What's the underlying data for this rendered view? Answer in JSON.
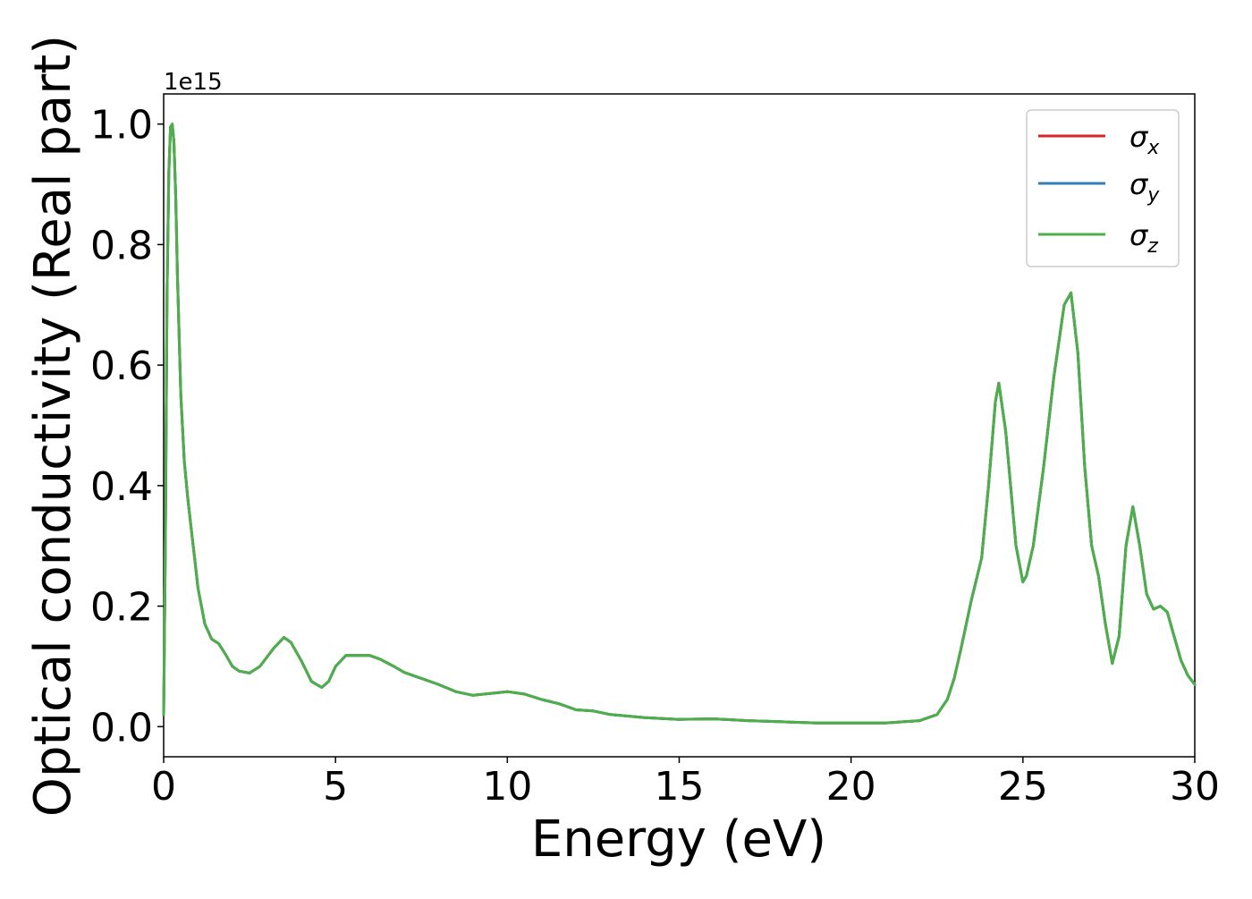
{
  "chart_data": {
    "type": "line",
    "title": "",
    "xlabel": "Energy (eV)",
    "ylabel": "Optical conductivity (Real part)",
    "y_offset_label": "1e15",
    "xlim": [
      0,
      30
    ],
    "ylim": [
      -0.05,
      1.05
    ],
    "x_ticks": [
      0,
      5,
      10,
      15,
      20,
      25,
      30
    ],
    "x_tick_labels": [
      "0",
      "5",
      "10",
      "15",
      "20",
      "25",
      "30"
    ],
    "y_ticks": [
      0.0,
      0.2,
      0.4,
      0.6,
      0.8,
      1.0
    ],
    "y_tick_labels": [
      "0.0",
      "0.2",
      "0.4",
      "0.6",
      "0.8",
      "1.0"
    ],
    "grid": false,
    "legend_position": "top-right",
    "x": [
      0,
      0.05,
      0.1,
      0.15,
      0.2,
      0.25,
      0.3,
      0.35,
      0.4,
      0.5,
      0.6,
      0.7,
      0.8,
      0.9,
      1.0,
      1.2,
      1.4,
      1.6,
      1.8,
      2.0,
      2.2,
      2.5,
      2.8,
      3.0,
      3.2,
      3.5,
      3.7,
      4.0,
      4.3,
      4.6,
      4.8,
      5.0,
      5.3,
      5.5,
      5.8,
      6.0,
      6.3,
      6.7,
      7.0,
      7.5,
      8.0,
      8.5,
      9.0,
      9.5,
      10.0,
      10.5,
      11.0,
      11.5,
      12.0,
      12.5,
      13.0,
      14.0,
      15.0,
      16.0,
      17.0,
      18.0,
      19.0,
      20.0,
      21.0,
      22.0,
      22.5,
      22.8,
      23.0,
      23.2,
      23.5,
      23.8,
      24.0,
      24.2,
      24.3,
      24.5,
      24.8,
      25.0,
      25.1,
      25.3,
      25.6,
      25.9,
      26.2,
      26.4,
      26.6,
      26.8,
      27.0,
      27.2,
      27.4,
      27.6,
      27.8,
      28.0,
      28.2,
      28.4,
      28.6,
      28.8,
      29.0,
      29.2,
      29.4,
      29.6,
      29.8,
      30.0
    ],
    "series": [
      {
        "name": "σx",
        "color": "#d62728",
        "values": [
          0.02,
          0.3,
          0.72,
          0.92,
          0.995,
          1.0,
          0.97,
          0.88,
          0.75,
          0.55,
          0.44,
          0.38,
          0.33,
          0.28,
          0.23,
          0.17,
          0.145,
          0.138,
          0.12,
          0.1,
          0.092,
          0.089,
          0.1,
          0.115,
          0.13,
          0.148,
          0.14,
          0.11,
          0.075,
          0.065,
          0.075,
          0.1,
          0.118,
          0.118,
          0.118,
          0.118,
          0.112,
          0.1,
          0.09,
          0.08,
          0.07,
          0.058,
          0.052,
          0.055,
          0.058,
          0.054,
          0.045,
          0.038,
          0.028,
          0.026,
          0.02,
          0.015,
          0.012,
          0.013,
          0.01,
          0.008,
          0.006,
          0.006,
          0.006,
          0.01,
          0.02,
          0.045,
          0.08,
          0.13,
          0.21,
          0.28,
          0.4,
          0.54,
          0.57,
          0.49,
          0.3,
          0.24,
          0.25,
          0.3,
          0.43,
          0.58,
          0.7,
          0.72,
          0.62,
          0.43,
          0.3,
          0.25,
          0.17,
          0.105,
          0.15,
          0.3,
          0.365,
          0.3,
          0.22,
          0.195,
          0.2,
          0.19,
          0.15,
          0.11,
          0.085,
          0.07
        ]
      },
      {
        "name": "σy",
        "color": "#377eb8",
        "values": [
          0.02,
          0.3,
          0.72,
          0.92,
          0.995,
          1.0,
          0.97,
          0.88,
          0.75,
          0.55,
          0.44,
          0.38,
          0.33,
          0.28,
          0.23,
          0.17,
          0.145,
          0.138,
          0.12,
          0.1,
          0.092,
          0.089,
          0.1,
          0.115,
          0.13,
          0.148,
          0.14,
          0.11,
          0.075,
          0.065,
          0.075,
          0.1,
          0.118,
          0.118,
          0.118,
          0.118,
          0.112,
          0.1,
          0.09,
          0.08,
          0.07,
          0.058,
          0.052,
          0.055,
          0.058,
          0.054,
          0.045,
          0.038,
          0.028,
          0.026,
          0.02,
          0.015,
          0.012,
          0.013,
          0.01,
          0.008,
          0.006,
          0.006,
          0.006,
          0.01,
          0.02,
          0.045,
          0.08,
          0.13,
          0.21,
          0.28,
          0.4,
          0.54,
          0.57,
          0.49,
          0.3,
          0.24,
          0.25,
          0.3,
          0.43,
          0.58,
          0.7,
          0.72,
          0.62,
          0.43,
          0.3,
          0.25,
          0.17,
          0.105,
          0.15,
          0.3,
          0.365,
          0.3,
          0.22,
          0.195,
          0.2,
          0.19,
          0.15,
          0.11,
          0.085,
          0.07
        ]
      },
      {
        "name": "σz",
        "color": "#4daf4a",
        "values": [
          0.02,
          0.3,
          0.72,
          0.92,
          0.995,
          1.0,
          0.97,
          0.88,
          0.75,
          0.55,
          0.44,
          0.38,
          0.33,
          0.28,
          0.23,
          0.17,
          0.145,
          0.138,
          0.12,
          0.1,
          0.092,
          0.089,
          0.1,
          0.115,
          0.13,
          0.148,
          0.14,
          0.11,
          0.075,
          0.065,
          0.075,
          0.1,
          0.118,
          0.118,
          0.118,
          0.118,
          0.112,
          0.1,
          0.09,
          0.08,
          0.07,
          0.058,
          0.052,
          0.055,
          0.058,
          0.054,
          0.045,
          0.038,
          0.028,
          0.026,
          0.02,
          0.015,
          0.012,
          0.013,
          0.01,
          0.008,
          0.006,
          0.006,
          0.006,
          0.01,
          0.02,
          0.045,
          0.08,
          0.13,
          0.21,
          0.28,
          0.4,
          0.54,
          0.57,
          0.49,
          0.3,
          0.24,
          0.25,
          0.3,
          0.43,
          0.58,
          0.7,
          0.72,
          0.62,
          0.43,
          0.3,
          0.25,
          0.17,
          0.105,
          0.15,
          0.3,
          0.365,
          0.3,
          0.22,
          0.195,
          0.2,
          0.19,
          0.15,
          0.11,
          0.085,
          0.07
        ]
      }
    ],
    "legend": [
      {
        "symbol": "σ",
        "subscript": "x",
        "color": "#d62728"
      },
      {
        "symbol": "σ",
        "subscript": "y",
        "color": "#377eb8"
      },
      {
        "symbol": "σ",
        "subscript": "z",
        "color": "#4daf4a"
      }
    ]
  }
}
